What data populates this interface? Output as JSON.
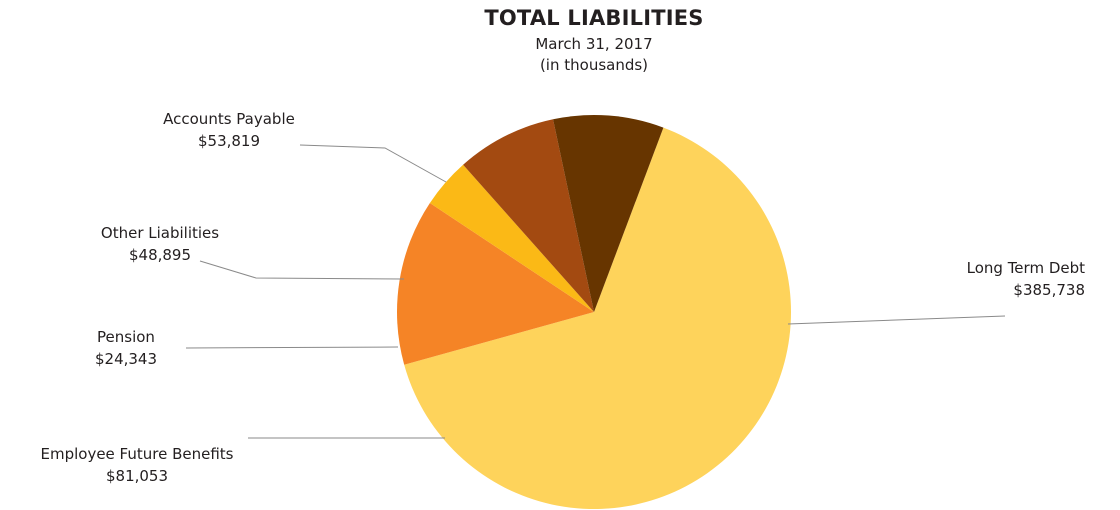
{
  "header": {
    "title": "TOTAL LIABILITIES",
    "subtitle_line1": "March 31, 2017",
    "subtitle_line2": "(in thousands)"
  },
  "chart_data": {
    "type": "pie",
    "title": "TOTAL LIABILITIES",
    "subtitle": "March 31, 2017 (in thousands)",
    "slices": [
      {
        "name": "Long Term Debt",
        "value": 385738,
        "value_label": "$385,738",
        "color": "#fed35b"
      },
      {
        "name": "Employee Future Benefits",
        "value": 81053,
        "value_label": "$81,053",
        "color": "#f58426"
      },
      {
        "name": "Pension",
        "value": 24343,
        "value_label": "$24,343",
        "color": "#fbb916"
      },
      {
        "name": "Other Liabilities",
        "value": 48895,
        "value_label": "$48,895",
        "color": "#a34a11"
      },
      {
        "name": "Accounts Payable",
        "value": 53819,
        "value_label": "$53,819",
        "color": "#673500"
      }
    ]
  }
}
